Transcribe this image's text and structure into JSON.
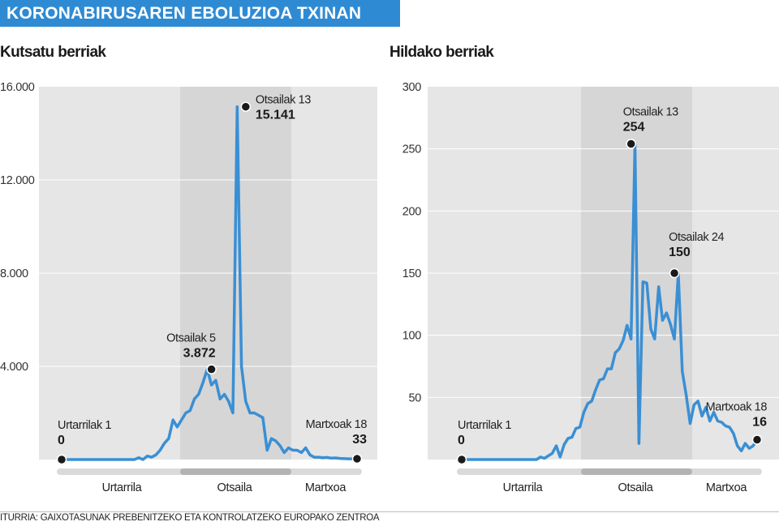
{
  "banner_title": "KORONABIRUSAREN EBOLUZIOA TXINAN",
  "source": "ITURRIA: GAIXOTASUNAK PREBENITZEKO ETA KONTROLATZEKO EUROPAKO ZENTROA",
  "colors": {
    "line": "#3a8fd4",
    "banner": "#2e8bd3",
    "plot_bg": "#e6e6e6",
    "highlight_band": "#d6d6d6",
    "dot": "#1a1a1a"
  },
  "chart_data": [
    {
      "type": "line",
      "title": "Kutsatu berriak",
      "ylim": [
        0,
        16000
      ],
      "yticks": [
        "16.000",
        "12.000",
        "8.000",
        "4.000"
      ],
      "ytick_values": [
        16000,
        12000,
        8000,
        4000
      ],
      "x_start": "2020-01-01",
      "months": [
        "Urtarrila",
        "Otsaila",
        "Martxoa"
      ],
      "series": [
        {
          "values": [
            0,
            0,
            0,
            0,
            0,
            0,
            0,
            0,
            0,
            0,
            0,
            0,
            0,
            0,
            0,
            0,
            0,
            0,
            80,
            0,
            150,
            100,
            200,
            400,
            700,
            900,
            1700,
            1400,
            1700,
            2000,
            2100,
            2600,
            2800,
            3300,
            3872,
            3200,
            3400,
            2600,
            2800,
            2500,
            2000,
            15141,
            4000,
            2500,
            2000,
            2000,
            1900,
            1800,
            400,
            900,
            800,
            600,
            300,
            500,
            400,
            400,
            300,
            500,
            200,
            100,
            100,
            80,
            90,
            60,
            70,
            50,
            40,
            30,
            30,
            33
          ]
        }
      ],
      "annotations": [
        {
          "label": "Urtarrilak 1",
          "value": "0",
          "date": "2020-01-01"
        },
        {
          "label": "Otsailak 5",
          "value": "3.872",
          "date": "2020-02-05"
        },
        {
          "label": "Otsailak 13",
          "value": "15.141",
          "date": "2020-02-13"
        },
        {
          "label": "Martxoak 18",
          "value": "33",
          "date": "2020-03-18"
        }
      ]
    },
    {
      "type": "line",
      "title": "Hildako berriak",
      "ylim": [
        0,
        300
      ],
      "yticks": [
        "300",
        "250",
        "200",
        "150",
        "100",
        "50"
      ],
      "ytick_values": [
        300,
        250,
        200,
        150,
        100,
        50
      ],
      "x_start": "2020-01-01",
      "months": [
        "Urtarrila",
        "Otsaila",
        "Martxoa"
      ],
      "series": [
        {
          "values": [
            0,
            0,
            0,
            0,
            0,
            0,
            0,
            0,
            0,
            0,
            0,
            0,
            0,
            0,
            0,
            0,
            0,
            0,
            0,
            0,
            2,
            1,
            3,
            5,
            11,
            2,
            12,
            17,
            18,
            25,
            26,
            38,
            45,
            47,
            56,
            64,
            65,
            73,
            73,
            86,
            89,
            96,
            108,
            97,
            254,
            13,
            143,
            142,
            105,
            97,
            139,
            112,
            118,
            109,
            97,
            150,
            71,
            52,
            29,
            44,
            47,
            35,
            42,
            31,
            38,
            31,
            30,
            27,
            26,
            21,
            11,
            7,
            13,
            9,
            11,
            16
          ]
        }
      ],
      "annotations": [
        {
          "label": "Urtarrilak 1",
          "value": "0",
          "date": "2020-01-01"
        },
        {
          "label": "Otsailak 13",
          "value": "254",
          "date": "2020-02-13"
        },
        {
          "label": "Otsailak 24",
          "value": "150",
          "date": "2020-02-24"
        },
        {
          "label": "Martxoak 18",
          "value": "16",
          "date": "2020-03-18"
        }
      ]
    }
  ]
}
